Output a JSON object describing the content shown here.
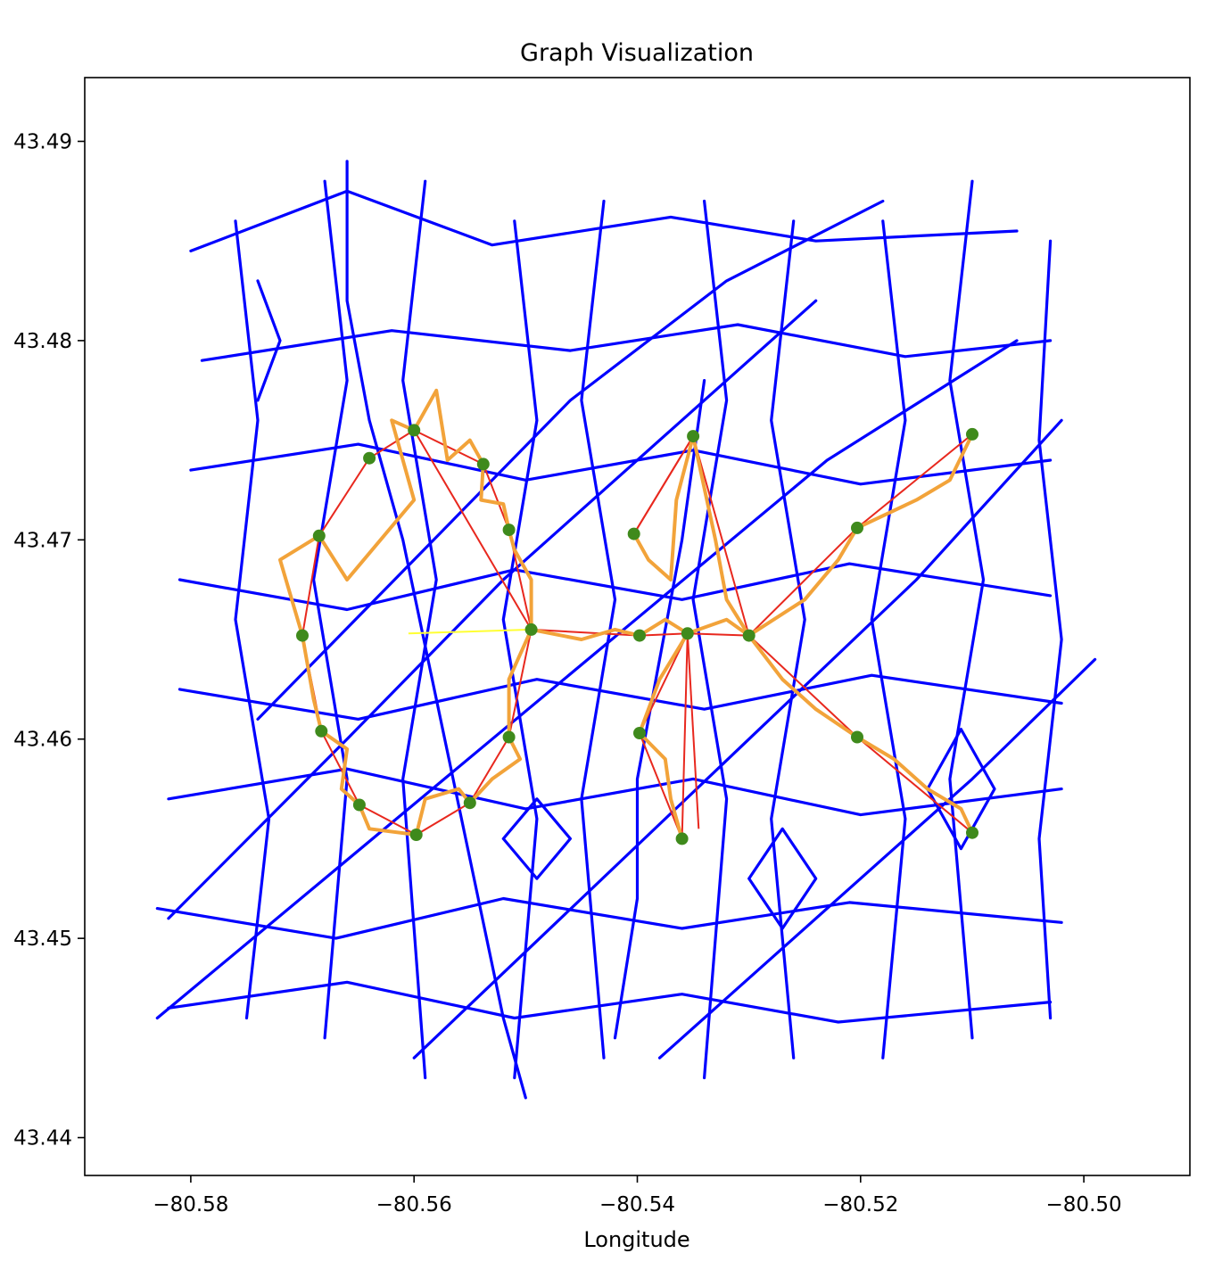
{
  "chart_data": {
    "type": "line",
    "title": "Graph Visualization",
    "xlabel": "Longitude",
    "ylabel": "",
    "xlim": [
      -80.5895,
      -80.4905
    ],
    "ylim": [
      43.4381,
      43.4932
    ],
    "x_ticks": [
      -80.58,
      -80.56,
      -80.54,
      -80.52,
      -80.5
    ],
    "x_tick_labels": [
      "−80.58",
      "−80.56",
      "−80.54",
      "−80.52",
      "−80.50"
    ],
    "y_ticks": [
      43.44,
      43.45,
      43.46,
      43.47,
      43.48,
      43.49
    ],
    "y_tick_labels": [
      "43.44",
      "43.45",
      "43.46",
      "43.47",
      "43.48",
      "43.49"
    ],
    "grid": false,
    "legend": "none",
    "colors": {
      "road_network": "#0000ff",
      "direct_edges": "#e8281e",
      "routes": "#f2a33a",
      "connector": "#ffff33",
      "nodes": "#3f8a1c"
    },
    "road_lines": [
      [
        [
          -80.58,
          43.4845
        ],
        [
          -80.566,
          43.4875
        ],
        [
          -80.553,
          43.4848
        ],
        [
          -80.537,
          43.4862
        ],
        [
          -80.524,
          43.485
        ],
        [
          -80.506,
          43.4855
        ]
      ],
      [
        [
          -80.579,
          43.479
        ],
        [
          -80.562,
          43.4805
        ],
        [
          -80.546,
          43.4795
        ],
        [
          -80.531,
          43.4808
        ],
        [
          -80.516,
          43.4792
        ],
        [
          -80.503,
          43.48
        ]
      ],
      [
        [
          -80.58,
          43.4735
        ],
        [
          -80.565,
          43.4748
        ],
        [
          -80.55,
          43.473
        ],
        [
          -80.535,
          43.4745
        ],
        [
          -80.52,
          43.4728
        ],
        [
          -80.503,
          43.474
        ]
      ],
      [
        [
          -80.581,
          43.468
        ],
        [
          -80.566,
          43.4665
        ],
        [
          -80.551,
          43.4685
        ],
        [
          -80.536,
          43.467
        ],
        [
          -80.521,
          43.4688
        ],
        [
          -80.503,
          43.4672
        ]
      ],
      [
        [
          -80.581,
          43.4625
        ],
        [
          -80.565,
          43.461
        ],
        [
          -80.549,
          43.463
        ],
        [
          -80.534,
          43.4615
        ],
        [
          -80.519,
          43.4632
        ],
        [
          -80.502,
          43.4618
        ]
      ],
      [
        [
          -80.582,
          43.457
        ],
        [
          -80.566,
          43.4585
        ],
        [
          -80.55,
          43.4565
        ],
        [
          -80.535,
          43.458
        ],
        [
          -80.52,
          43.4562
        ],
        [
          -80.502,
          43.4575
        ]
      ],
      [
        [
          -80.583,
          43.4515
        ],
        [
          -80.567,
          43.45
        ],
        [
          -80.552,
          43.452
        ],
        [
          -80.536,
          43.4505
        ],
        [
          -80.521,
          43.4518
        ],
        [
          -80.502,
          43.4508
        ]
      ],
      [
        [
          -80.582,
          43.4465
        ],
        [
          -80.566,
          43.4478
        ],
        [
          -80.551,
          43.446
        ],
        [
          -80.536,
          43.4472
        ],
        [
          -80.522,
          43.4458
        ],
        [
          -80.503,
          43.4468
        ]
      ],
      [
        [
          -80.576,
          43.486
        ],
        [
          -80.574,
          43.476
        ],
        [
          -80.576,
          43.466
        ],
        [
          -80.573,
          43.456
        ],
        [
          -80.575,
          43.446
        ]
      ],
      [
        [
          -80.568,
          43.488
        ],
        [
          -80.566,
          43.478
        ],
        [
          -80.569,
          43.468
        ],
        [
          -80.566,
          43.458
        ],
        [
          -80.568,
          43.445
        ]
      ],
      [
        [
          -80.559,
          43.488
        ],
        [
          -80.561,
          43.478
        ],
        [
          -80.558,
          43.468
        ],
        [
          -80.561,
          43.458
        ],
        [
          -80.559,
          43.443
        ]
      ],
      [
        [
          -80.551,
          43.486
        ],
        [
          -80.549,
          43.476
        ],
        [
          -80.552,
          43.466
        ],
        [
          -80.549,
          43.456
        ],
        [
          -80.551,
          43.443
        ]
      ],
      [
        [
          -80.543,
          43.487
        ],
        [
          -80.545,
          43.477
        ],
        [
          -80.542,
          43.467
        ],
        [
          -80.545,
          43.457
        ],
        [
          -80.543,
          43.444
        ]
      ],
      [
        [
          -80.534,
          43.487
        ],
        [
          -80.532,
          43.477
        ],
        [
          -80.535,
          43.467
        ],
        [
          -80.532,
          43.457
        ],
        [
          -80.534,
          43.443
        ]
      ],
      [
        [
          -80.526,
          43.486
        ],
        [
          -80.528,
          43.476
        ],
        [
          -80.525,
          43.466
        ],
        [
          -80.528,
          43.456
        ],
        [
          -80.526,
          43.444
        ]
      ],
      [
        [
          -80.518,
          43.486
        ],
        [
          -80.516,
          43.476
        ],
        [
          -80.519,
          43.466
        ],
        [
          -80.516,
          43.456
        ],
        [
          -80.518,
          43.444
        ]
      ],
      [
        [
          -80.51,
          43.488
        ],
        [
          -80.512,
          43.478
        ],
        [
          -80.509,
          43.468
        ],
        [
          -80.512,
          43.458
        ],
        [
          -80.51,
          43.445
        ]
      ],
      [
        [
          -80.503,
          43.485
        ],
        [
          -80.504,
          43.475
        ],
        [
          -80.502,
          43.465
        ],
        [
          -80.504,
          43.455
        ],
        [
          -80.503,
          43.446
        ]
      ],
      [
        [
          -80.574,
          43.461
        ],
        [
          -80.56,
          43.469
        ],
        [
          -80.546,
          43.477
        ],
        [
          -80.532,
          43.483
        ],
        [
          -80.518,
          43.487
        ]
      ],
      [
        [
          -80.582,
          43.451
        ],
        [
          -80.566,
          43.46
        ],
        [
          -80.552,
          43.468
        ],
        [
          -80.538,
          43.475
        ],
        [
          -80.524,
          43.482
        ]
      ],
      [
        [
          -80.583,
          43.446
        ],
        [
          -80.568,
          43.453
        ],
        [
          -80.553,
          43.46
        ],
        [
          -80.538,
          43.467
        ],
        [
          -80.523,
          43.474
        ],
        [
          -80.506,
          43.48
        ]
      ],
      [
        [
          -80.56,
          43.444
        ],
        [
          -80.545,
          43.452
        ],
        [
          -80.53,
          43.46
        ],
        [
          -80.515,
          43.468
        ],
        [
          -80.502,
          43.476
        ]
      ],
      [
        [
          -80.538,
          43.444
        ],
        [
          -80.524,
          43.451
        ],
        [
          -80.51,
          43.458
        ],
        [
          -80.499,
          43.464
        ]
      ],
      [
        [
          -80.566,
          43.489
        ],
        [
          -80.566,
          43.482
        ],
        [
          -80.564,
          43.476
        ],
        [
          -80.561,
          43.47
        ],
        [
          -80.558,
          43.462
        ],
        [
          -80.555,
          43.454
        ],
        [
          -80.552,
          43.446
        ],
        [
          -80.55,
          43.442
        ]
      ],
      [
        [
          -80.542,
          43.445
        ],
        [
          -80.54,
          43.452
        ],
        [
          -80.54,
          43.458
        ],
        [
          -80.538,
          43.464
        ],
        [
          -80.536,
          43.47
        ],
        [
          -80.534,
          43.478
        ]
      ],
      [
        [
          -80.574,
          43.483
        ],
        [
          -80.572,
          43.48
        ],
        [
          -80.574,
          43.477
        ]
      ],
      [
        [
          -80.552,
          43.455
        ],
        [
          -80.549,
          43.453
        ],
        [
          -80.546,
          43.455
        ],
        [
          -80.549,
          43.457
        ],
        [
          -80.552,
          43.455
        ]
      ],
      [
        [
          -80.53,
          43.453
        ],
        [
          -80.527,
          43.4505
        ],
        [
          -80.524,
          43.453
        ],
        [
          -80.527,
          43.4555
        ],
        [
          -80.53,
          43.453
        ]
      ],
      [
        [
          -80.514,
          43.4575
        ],
        [
          -80.511,
          43.4545
        ],
        [
          -80.508,
          43.4575
        ],
        [
          -80.511,
          43.4605
        ],
        [
          -80.514,
          43.4575
        ]
      ]
    ],
    "direct_edges": [
      [
        [
          -80.5685,
          43.4702
        ],
        [
          -80.564,
          43.4741
        ],
        [
          -80.56,
          43.4755
        ],
        [
          -80.5538,
          43.4738
        ],
        [
          -80.5515,
          43.4705
        ]
      ],
      [
        [
          -80.5685,
          43.4702
        ],
        [
          -80.57,
          43.4652
        ],
        [
          -80.5683,
          43.4604
        ],
        [
          -80.5649,
          43.4567
        ],
        [
          -80.5598,
          43.4552
        ],
        [
          -80.555,
          43.4568
        ],
        [
          -80.5515,
          43.4601
        ],
        [
          -80.5495,
          43.4655
        ],
        [
          -80.5515,
          43.4705
        ]
      ],
      [
        [
          -80.56,
          43.4755
        ],
        [
          -80.5495,
          43.4655
        ]
      ],
      [
        [
          -80.5495,
          43.4655
        ],
        [
          -80.5398,
          43.4652
        ],
        [
          -80.5355,
          43.4653
        ],
        [
          -80.53,
          43.4652
        ]
      ],
      [
        [
          -80.5403,
          43.4703
        ],
        [
          -80.535,
          43.4752
        ],
        [
          -80.53,
          43.4652
        ],
        [
          -80.5203,
          43.4706
        ],
        [
          -80.51,
          43.4753
        ]
      ],
      [
        [
          -80.535,
          43.4752
        ],
        [
          -80.5403,
          43.4703
        ]
      ],
      [
        [
          -80.53,
          43.4652
        ],
        [
          -80.5203,
          43.4601
        ],
        [
          -80.51,
          43.4553
        ]
      ],
      [
        [
          -80.5355,
          43.4653
        ],
        [
          -80.5398,
          43.4603
        ],
        [
          -80.536,
          43.455
        ],
        [
          -80.5355,
          43.4653
        ]
      ],
      [
        [
          -80.5355,
          43.4653
        ],
        [
          -80.5345,
          43.4555
        ]
      ]
    ],
    "routes": [
      [
        [
          -80.5685,
          43.4702
        ],
        [
          -80.566,
          43.468
        ],
        [
          -80.56,
          43.472
        ],
        [
          -80.562,
          43.476
        ],
        [
          -80.56,
          43.4755
        ],
        [
          -80.558,
          43.4775
        ],
        [
          -80.557,
          43.474
        ],
        [
          -80.555,
          43.475
        ],
        [
          -80.5538,
          43.4738
        ],
        [
          -80.554,
          43.472
        ],
        [
          -80.552,
          43.4718
        ],
        [
          -80.5515,
          43.4705
        ],
        [
          -80.551,
          43.4695
        ],
        [
          -80.5495,
          43.468
        ],
        [
          -80.5495,
          43.4655
        ]
      ],
      [
        [
          -80.5685,
          43.4702
        ],
        [
          -80.572,
          43.469
        ],
        [
          -80.57,
          43.4652
        ],
        [
          -80.569,
          43.462
        ],
        [
          -80.5683,
          43.4604
        ],
        [
          -80.566,
          43.4595
        ],
        [
          -80.5665,
          43.4575
        ],
        [
          -80.5649,
          43.4567
        ],
        [
          -80.564,
          43.4555
        ],
        [
          -80.5598,
          43.4552
        ],
        [
          -80.559,
          43.457
        ],
        [
          -80.556,
          43.4575
        ],
        [
          -80.555,
          43.4568
        ],
        [
          -80.553,
          43.458
        ],
        [
          -80.5505,
          43.459
        ],
        [
          -80.5515,
          43.4601
        ],
        [
          -80.5515,
          43.463
        ],
        [
          -80.5495,
          43.4655
        ]
      ],
      [
        [
          -80.5495,
          43.4655
        ],
        [
          -80.545,
          43.465
        ],
        [
          -80.542,
          43.4655
        ],
        [
          -80.5398,
          43.4652
        ],
        [
          -80.5375,
          43.466
        ],
        [
          -80.5355,
          43.4653
        ],
        [
          -80.532,
          43.466
        ],
        [
          -80.53,
          43.4652
        ]
      ],
      [
        [
          -80.5403,
          43.4703
        ],
        [
          -80.539,
          43.469
        ],
        [
          -80.537,
          43.468
        ],
        [
          -80.5365,
          43.472
        ],
        [
          -80.535,
          43.4752
        ],
        [
          -80.533,
          43.47
        ],
        [
          -80.532,
          43.467
        ],
        [
          -80.53,
          43.4652
        ]
      ],
      [
        [
          -80.53,
          43.4652
        ],
        [
          -80.525,
          43.467
        ],
        [
          -80.522,
          43.469
        ],
        [
          -80.5203,
          43.4706
        ],
        [
          -80.515,
          43.472
        ],
        [
          -80.512,
          43.473
        ],
        [
          -80.51,
          43.4753
        ]
      ],
      [
        [
          -80.53,
          43.4652
        ],
        [
          -80.527,
          43.463
        ],
        [
          -80.524,
          43.4615
        ],
        [
          -80.5203,
          43.4601
        ],
        [
          -80.517,
          43.459
        ],
        [
          -80.514,
          43.4575
        ],
        [
          -80.511,
          43.4565
        ],
        [
          -80.51,
          43.4553
        ]
      ],
      [
        [
          -80.5355,
          43.4653
        ],
        [
          -80.538,
          43.463
        ],
        [
          -80.5398,
          43.4603
        ],
        [
          -80.5375,
          43.459
        ],
        [
          -80.537,
          43.457
        ],
        [
          -80.536,
          43.455
        ]
      ]
    ],
    "connector": [
      [
        -80.5605,
        43.4653
      ],
      [
        -80.5495,
        43.4655
      ]
    ],
    "nodes": [
      [
        -80.56,
        43.4755
      ],
      [
        -80.564,
        43.4741
      ],
      [
        -80.5538,
        43.4738
      ],
      [
        -80.5515,
        43.4705
      ],
      [
        -80.5685,
        43.4702
      ],
      [
        -80.57,
        43.4652
      ],
      [
        -80.5495,
        43.4655
      ],
      [
        -80.5683,
        43.4604
      ],
      [
        -80.5515,
        43.4601
      ],
      [
        -80.5649,
        43.4567
      ],
      [
        -80.555,
        43.4568
      ],
      [
        -80.5598,
        43.4552
      ],
      [
        -80.535,
        43.4752
      ],
      [
        -80.5403,
        43.4703
      ],
      [
        -80.5203,
        43.4706
      ],
      [
        -80.51,
        43.4753
      ],
      [
        -80.5398,
        43.4652
      ],
      [
        -80.5355,
        43.4653
      ],
      [
        -80.53,
        43.4652
      ],
      [
        -80.5398,
        43.4603
      ],
      [
        -80.5203,
        43.4601
      ],
      [
        -80.536,
        43.455
      ],
      [
        -80.51,
        43.4553
      ]
    ]
  }
}
